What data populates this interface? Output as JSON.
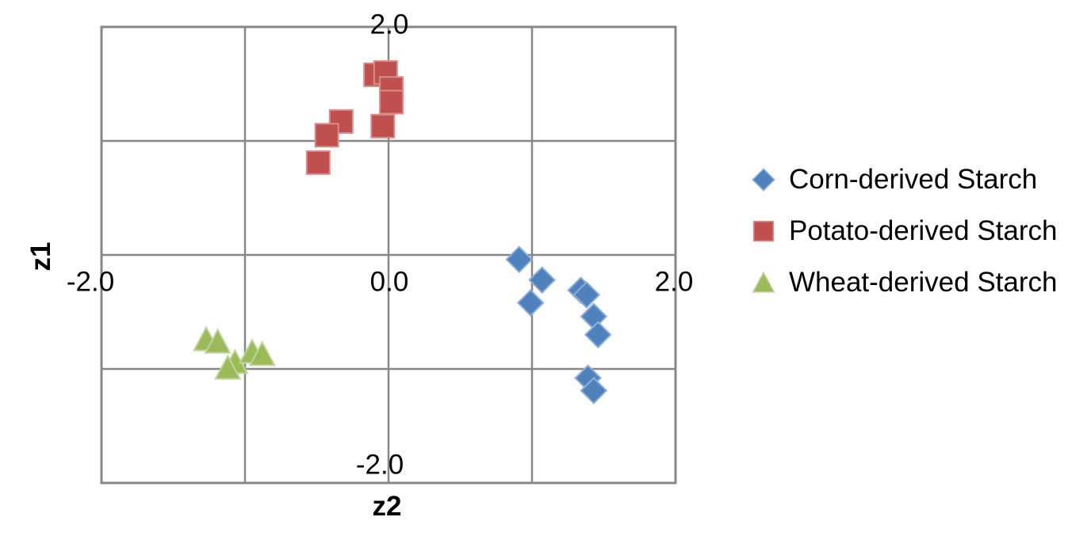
{
  "chart_data": {
    "type": "scatter",
    "xlabel": "z2",
    "ylabel": "z1",
    "xlim": [
      -2.0,
      2.0
    ],
    "ylim": [
      -2.0,
      2.0
    ],
    "grid": {
      "on": true,
      "x_values": [
        -2,
        -1,
        0,
        1,
        2
      ],
      "y_values": [
        -2,
        -1,
        0,
        1,
        2
      ]
    },
    "x_ticks": [
      {
        "value": -2,
        "label": "-2.0"
      },
      {
        "value": 0,
        "label": "0.0"
      },
      {
        "value": 2,
        "label": "2.0"
      }
    ],
    "y_ticks": [
      {
        "value": 2,
        "label": "2.0"
      },
      {
        "value": -2,
        "label": "-2.0"
      }
    ],
    "legend_position": "right",
    "series": [
      {
        "name": "Corn-derived Starch",
        "marker": "diamond",
        "color": "#4F81BD",
        "edge_color": "#8FAFD6",
        "points": [
          [
            0.91,
            -0.04
          ],
          [
            1.07,
            -0.22
          ],
          [
            0.99,
            -0.42
          ],
          [
            1.34,
            -0.31
          ],
          [
            1.38,
            -0.35
          ],
          [
            1.43,
            -0.54
          ],
          [
            1.46,
            -0.7
          ],
          [
            1.39,
            -1.08
          ],
          [
            1.43,
            -1.19
          ]
        ]
      },
      {
        "name": "Potato-derived Starch",
        "marker": "square",
        "color": "#C0504D",
        "edge_color": "#D68E8C",
        "points": [
          [
            -0.09,
            1.58
          ],
          [
            -0.02,
            1.6
          ],
          [
            0.02,
            1.46
          ],
          [
            0.02,
            1.34
          ],
          [
            -0.04,
            1.13
          ],
          [
            -0.33,
            1.17
          ],
          [
            -0.43,
            1.05
          ],
          [
            -0.49,
            0.81
          ]
        ]
      },
      {
        "name": "Wheat-derived Starch",
        "marker": "triangle",
        "color": "#9BBB59",
        "edge_color": "#C0D39A",
        "points": [
          [
            -1.27,
            -0.74
          ],
          [
            -1.19,
            -0.76
          ],
          [
            -1.07,
            -0.94
          ],
          [
            -0.95,
            -0.85
          ],
          [
            -0.88,
            -0.87
          ],
          [
            -1.12,
            -0.99
          ]
        ]
      }
    ]
  }
}
